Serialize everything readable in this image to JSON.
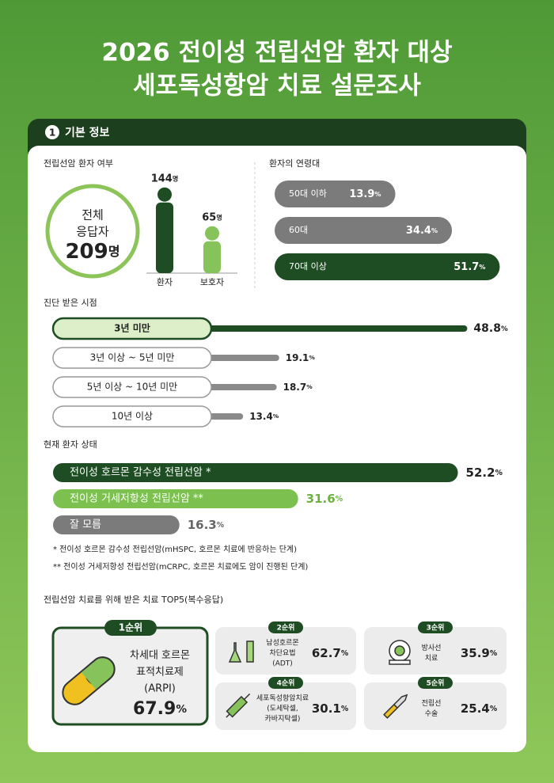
{
  "header": {
    "title_lines": [
      "2026 전이성 전립선암 환자 대상",
      "세포독성항암 치료 설문조사"
    ]
  },
  "section": {
    "number": "1",
    "title": "기본 정보"
  },
  "units": {
    "person": "명",
    "percent": "%"
  },
  "respondents": {
    "label": "전립선암 환자 여부",
    "total_label": [
      "전체",
      "응답자"
    ],
    "total": 209,
    "groups": [
      {
        "name": "환자",
        "value": 144,
        "color": "#1f4d23"
      },
      {
        "name": "보호자",
        "value": 65,
        "color": "#86c35a"
      }
    ]
  },
  "age": {
    "label": "환자의 연령대",
    "groups": [
      {
        "name": "50대 이하",
        "value": 13.9,
        "color": "#7b7b7b"
      },
      {
        "name": "60대",
        "value": 34.4,
        "color": "#7b7b7b"
      },
      {
        "name": "70대 이상",
        "value": 51.7,
        "color": "#1f4d23"
      }
    ]
  },
  "diagnosis": {
    "label": "진단 받은 시점",
    "items": [
      {
        "name": "3년 미만",
        "value": 48.8,
        "color": "#1f4d23"
      },
      {
        "name": "3년 이상 ~ 5년 미만",
        "value": 19.1,
        "color": "#8a8a8a"
      },
      {
        "name": "5년 이상 ~ 10년 미만",
        "value": 18.7,
        "color": "#8a8a8a"
      },
      {
        "name": "10년 이상",
        "value": 13.4,
        "color": "#8a8a8a"
      }
    ]
  },
  "status": {
    "label": "현재 환자 상태",
    "items": [
      {
        "name": "전이성 호르몬 감수성 전립선암 *",
        "value": 52.2,
        "color": "#1f4d23"
      },
      {
        "name": "전이성 거세저항성 전립선암 **",
        "value": 31.6,
        "color": "#7cc04f"
      },
      {
        "name": "잘 모름",
        "value": 16.3,
        "color": "#7b7b7b"
      }
    ],
    "notes": [
      "* 전이성 호르몬 감수성 전립선암(mHSPC, 호르몬 치료에 반응하는 단계)",
      "** 전이성 거세저항성 전립선암(mCRPC, 호르몬 치료에도 암이 진행된 단계)"
    ]
  },
  "treatment": {
    "label": "전립선암 치료를 위해 받은 치료 TOP5(복수응답)",
    "items": [
      {
        "rank": "1순위",
        "name": [
          "차세대 호르몬",
          "표적치료제",
          "(ARPI)"
        ],
        "value": 67.9
      },
      {
        "rank": "2순위",
        "name": [
          "남성호르몬",
          "차단요법",
          "(ADT)"
        ],
        "value": 62.7
      },
      {
        "rank": "3순위",
        "name": [
          "방사선",
          "치료"
        ],
        "value": 35.9
      },
      {
        "rank": "4순위",
        "name": [
          "세포독성항암치료",
          "(도세탁셀,",
          "카바지탁셀)"
        ],
        "value": 30.1
      },
      {
        "rank": "5순위",
        "name": [
          "전립선",
          "수술"
        ],
        "value": 25.4
      }
    ]
  }
}
